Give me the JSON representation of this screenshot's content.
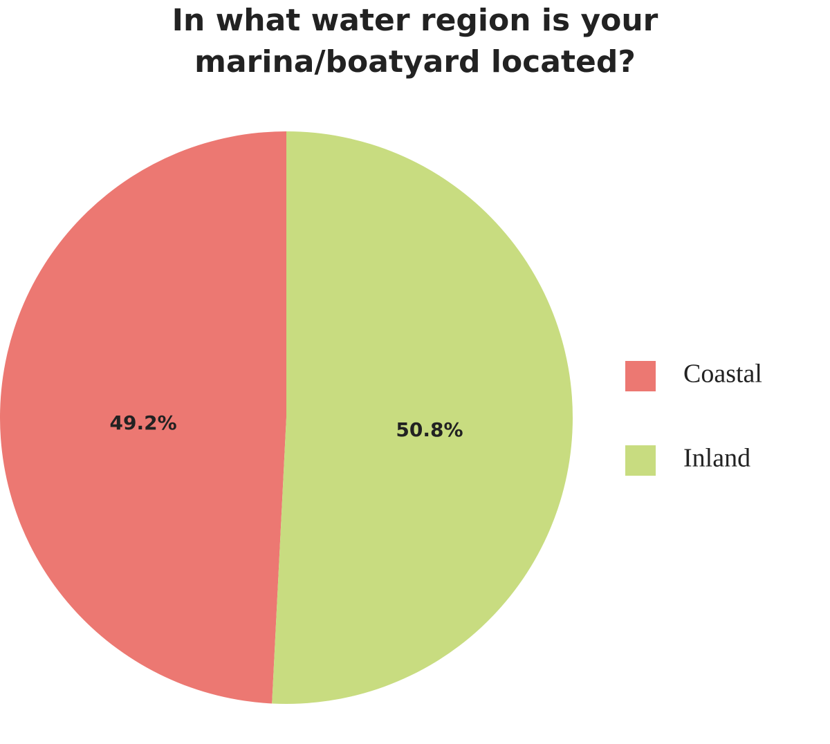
{
  "chart_data": {
    "type": "pie",
    "title": "In what water region is your marina/boatyard located?",
    "categories": [
      "Coastal",
      "Inland"
    ],
    "values": [
      49.2,
      50.8
    ],
    "value_labels": [
      "49.2%",
      "50.8%"
    ],
    "colors": [
      "#ec7872",
      "#c8dc80"
    ],
    "legend": "right"
  }
}
